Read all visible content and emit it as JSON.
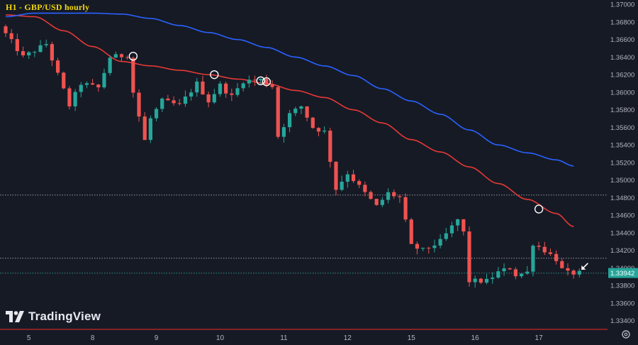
{
  "title": "H1 - GBP/USD hourly",
  "brand": {
    "name": "TradingView",
    "icon": "tradingview-logo-icon"
  },
  "settings_icon": "gear-icon",
  "colors": {
    "background": "#161a25",
    "up_candle": "#26a69a",
    "down_candle": "#ef5350",
    "ma_red": "#e53935",
    "ma_blue": "#2962ff",
    "current_price_tag": "#26a69a",
    "title": "#f5d90a"
  },
  "chart_data": {
    "type": "candlestick",
    "title": "H1 - GBP/USD hourly",
    "y_ticks": [
      "1.37000",
      "1.36800",
      "1.36600",
      "1.36400",
      "1.36200",
      "1.36000",
      "1.35800",
      "1.35600",
      "1.35400",
      "1.35200",
      "1.35000",
      "1.34800",
      "1.34600",
      "1.34400",
      "1.34200",
      "1.34000",
      "1.33800",
      "1.33600",
      "1.33400"
    ],
    "ylim": [
      1.333,
      1.3705
    ],
    "x_ticks": [
      "5",
      "8",
      "9",
      "10",
      "11",
      "12",
      "15",
      "16",
      "17"
    ],
    "x_tick_index": [
      4,
      15,
      26,
      37,
      48,
      59,
      70,
      81,
      92
    ],
    "bar_count": 100,
    "current_price": "1.33942",
    "horizontal_levels": [
      1.3483,
      1.3411,
      1.3394
    ],
    "price_path": [
      [
        0,
        1.3675
      ],
      [
        4,
        1.364
      ],
      [
        8,
        1.3655
      ],
      [
        10,
        1.362
      ],
      [
        12,
        1.3585
      ],
      [
        14,
        1.361
      ],
      [
        17,
        1.3605
      ],
      [
        19,
        1.364
      ],
      [
        22,
        1.3642
      ],
      [
        23,
        1.36
      ],
      [
        25,
        1.3545
      ],
      [
        26,
        1.357
      ],
      [
        28,
        1.359
      ],
      [
        31,
        1.3585
      ],
      [
        34,
        1.361
      ],
      [
        36,
        1.359
      ],
      [
        38,
        1.3608
      ],
      [
        40,
        1.3595
      ],
      [
        42,
        1.3613
      ],
      [
        45,
        1.3614
      ],
      [
        47,
        1.3607
      ],
      [
        48,
        1.355
      ],
      [
        50,
        1.3575
      ],
      [
        52,
        1.3584
      ],
      [
        54,
        1.356
      ],
      [
        56,
        1.3555
      ],
      [
        58,
        1.349
      ],
      [
        60,
        1.3508
      ],
      [
        63,
        1.3485
      ],
      [
        65,
        1.347
      ],
      [
        67,
        1.3485
      ],
      [
        69,
        1.348
      ],
      [
        71,
        1.3425
      ],
      [
        73,
        1.342
      ],
      [
        76,
        1.343
      ],
      [
        79,
        1.3455
      ],
      [
        80,
        1.344
      ],
      [
        81,
        1.3385
      ],
      [
        84,
        1.3385
      ],
      [
        86,
        1.3395
      ],
      [
        88,
        1.34
      ],
      [
        89,
        1.3392
      ],
      [
        91,
        1.3395
      ],
      [
        92,
        1.3428
      ],
      [
        94,
        1.342
      ],
      [
        96,
        1.341
      ],
      [
        97,
        1.3398
      ],
      [
        98,
        1.3394
      ]
    ],
    "moving_averages": [
      {
        "name": "MA red",
        "color": "#e53935",
        "points": [
          [
            0,
            1.3688
          ],
          [
            5,
            1.3686
          ],
          [
            10,
            1.367
          ],
          [
            15,
            1.3652
          ],
          [
            20,
            1.3635
          ],
          [
            25,
            1.363
          ],
          [
            30,
            1.3625
          ],
          [
            35,
            1.362
          ],
          [
            40,
            1.3615
          ],
          [
            45,
            1.361
          ],
          [
            50,
            1.3602
          ],
          [
            55,
            1.3594
          ],
          [
            60,
            1.358
          ],
          [
            65,
            1.3565
          ],
          [
            70,
            1.3546
          ],
          [
            75,
            1.3532
          ],
          [
            80,
            1.3515
          ],
          [
            85,
            1.3496
          ],
          [
            90,
            1.3478
          ],
          [
            95,
            1.3462
          ],
          [
            98,
            1.3447
          ]
        ]
      },
      {
        "name": "MA blue",
        "color": "#2962ff",
        "points": [
          [
            0,
            1.3686
          ],
          [
            5,
            1.369
          ],
          [
            10,
            1.369
          ],
          [
            15,
            1.369
          ],
          [
            20,
            1.3689
          ],
          [
            25,
            1.3684
          ],
          [
            30,
            1.3676
          ],
          [
            35,
            1.3668
          ],
          [
            40,
            1.366
          ],
          [
            45,
            1.3651
          ],
          [
            50,
            1.364
          ],
          [
            55,
            1.363
          ],
          [
            60,
            1.3619
          ],
          [
            65,
            1.3604
          ],
          [
            70,
            1.359
          ],
          [
            75,
            1.3575
          ],
          [
            80,
            1.3557
          ],
          [
            85,
            1.354
          ],
          [
            90,
            1.3531
          ],
          [
            95,
            1.3523
          ],
          [
            98,
            1.3516
          ]
        ]
      }
    ],
    "touch_markers": [
      {
        "index": 22,
        "price": 1.3641
      },
      {
        "index": 36,
        "price": 1.362
      },
      {
        "index": 44,
        "price": 1.3613
      },
      {
        "index": 45,
        "price": 1.3612
      },
      {
        "index": 92,
        "price": 1.3467
      }
    ],
    "arrow_marker": {
      "index": 99,
      "price": 1.3398,
      "label": "arrow-icon"
    }
  }
}
